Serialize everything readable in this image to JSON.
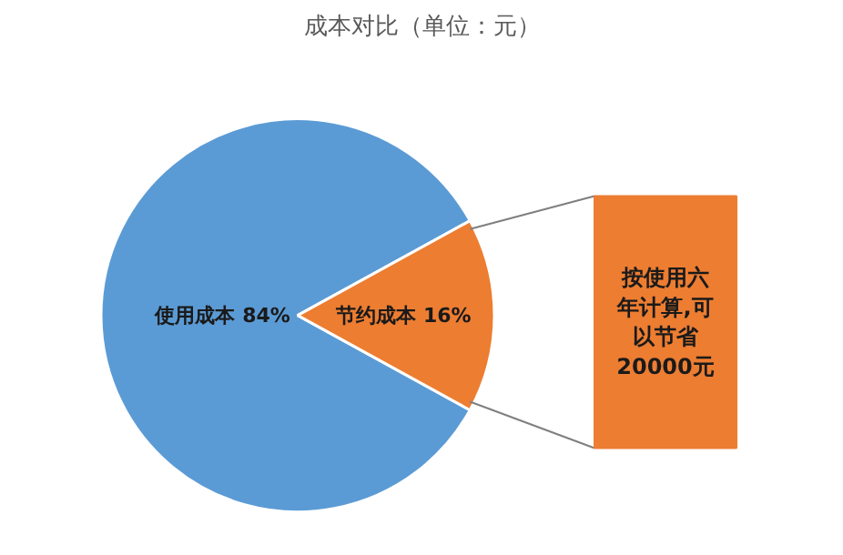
{
  "chart_data": {
    "type": "pie",
    "title": "成本对比（单位：元）",
    "categories": [
      "使用成本",
      "节约成本"
    ],
    "values": [
      84,
      16
    ],
    "colors": [
      "#5b9bd5",
      "#ed7d31"
    ],
    "value_labels": [
      "84%",
      "16%"
    ],
    "annotations": [
      "按使用六年计算,可以节省20000元"
    ]
  }
}
